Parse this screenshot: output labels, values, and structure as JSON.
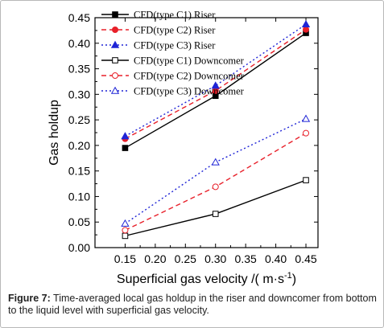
{
  "caption": {
    "label": "Figure 7:",
    "text": "Time-averaged local gas holdup in the riser and downcomer from bottom to the liquid level with superficial gas velocity."
  },
  "chart_data": {
    "type": "line",
    "xlabel": "Superficial gas velocity /( m·s",
    "xlabel_sup": "-1",
    "xlabel_end": ")",
    "ylabel": "Gas holdup",
    "xlim": [
      0.1,
      0.47
    ],
    "ylim": [
      0.0,
      0.45
    ],
    "x_ticks": [
      0.15,
      0.2,
      0.25,
      0.3,
      0.35,
      0.4,
      0.45
    ],
    "x_tick_labels": [
      "0.15",
      "0.20",
      "0.25",
      "0.30",
      "0.35",
      "0.40",
      "0.45"
    ],
    "y_ticks": [
      0.0,
      0.05,
      0.1,
      0.15,
      0.2,
      0.25,
      0.3,
      0.35,
      0.4,
      0.45
    ],
    "y_tick_labels": [
      "0.00",
      "0.05",
      "0.10",
      "0.15",
      "0.20",
      "0.25",
      "0.30",
      "0.35",
      "0.40",
      "0.45"
    ],
    "grid": false,
    "legend_position": "top-left",
    "series": [
      {
        "name": "CFD(type C1) Riser",
        "x": [
          0.15,
          0.3,
          0.45
        ],
        "values": [
          0.195,
          0.297,
          0.42
        ],
        "color": "#000000",
        "dash": "solid",
        "marker": "square-filled"
      },
      {
        "name": "CFD(type C2) Riser",
        "x": [
          0.15,
          0.3,
          0.45
        ],
        "values": [
          0.213,
          0.307,
          0.427
        ],
        "color": "#e8202a",
        "dash": "dashed",
        "marker": "circle-filled"
      },
      {
        "name": "CFD(type C3) Riser",
        "x": [
          0.15,
          0.3,
          0.45
        ],
        "values": [
          0.218,
          0.317,
          0.437
        ],
        "color": "#1f24d6",
        "dash": "dotted",
        "marker": "triangle-filled"
      },
      {
        "name": "CFD(type C1) Downcomer",
        "x": [
          0.15,
          0.3,
          0.45
        ],
        "values": [
          0.023,
          0.066,
          0.132
        ],
        "color": "#000000",
        "dash": "solid",
        "marker": "square-open"
      },
      {
        "name": "CFD(type C2) Downcomer",
        "x": [
          0.15,
          0.3,
          0.45
        ],
        "values": [
          0.034,
          0.119,
          0.224
        ],
        "color": "#e8202a",
        "dash": "dashed",
        "marker": "circle-open"
      },
      {
        "name": "CFD(type C3) Downcomer",
        "x": [
          0.15,
          0.3,
          0.45
        ],
        "values": [
          0.047,
          0.167,
          0.252
        ],
        "color": "#1f24d6",
        "dash": "dotted",
        "marker": "triangle-open"
      }
    ]
  }
}
